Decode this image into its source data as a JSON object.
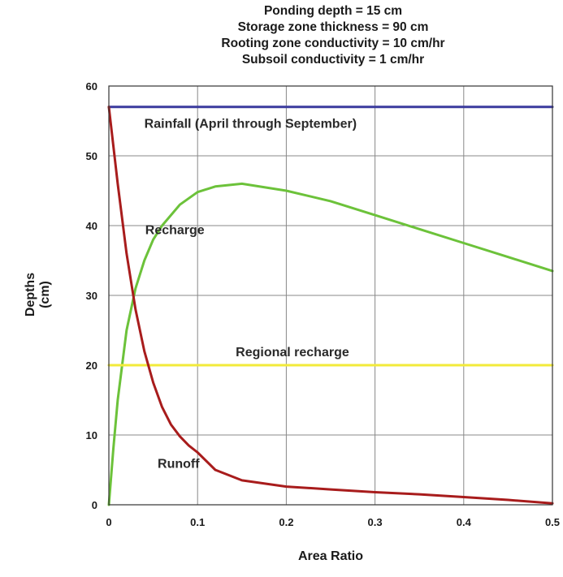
{
  "chart_data": {
    "type": "line",
    "title_lines": [
      "Ponding depth = 15 cm",
      "Storage zone thickness = 90 cm",
      "Rooting zone conductivity = 10 cm/hr",
      "Subsoil conductivity = 1 cm/hr"
    ],
    "xlabel": "Area Ratio",
    "ylabel": [
      "Depths",
      "(cm)"
    ],
    "xlim": [
      0,
      0.5
    ],
    "ylim": [
      0,
      60
    ],
    "xticks": [
      "0",
      "0.1",
      "0.2",
      "0.3",
      "0.4",
      "0.5"
    ],
    "yticks": [
      "0",
      "10",
      "20",
      "30",
      "40",
      "50",
      "60"
    ],
    "grid": true,
    "series": [
      {
        "name": "Rainfall (April through September)",
        "color": "#3b3b9e",
        "x": [
          0,
          0.5
        ],
        "y": [
          57,
          57
        ]
      },
      {
        "name": "Recharge",
        "color": "#6cc23a",
        "x": [
          0,
          0.005,
          0.01,
          0.02,
          0.03,
          0.04,
          0.05,
          0.06,
          0.08,
          0.1,
          0.12,
          0.15,
          0.2,
          0.25,
          0.3,
          0.35,
          0.4,
          0.45,
          0.5
        ],
        "y": [
          0,
          8,
          15,
          25,
          31,
          35,
          38,
          40,
          43,
          44.8,
          45.6,
          46,
          45,
          43.5,
          41.5,
          39.5,
          37.5,
          35.5,
          33.5
        ]
      },
      {
        "name": "Regional recharge",
        "color": "#f2ea3a",
        "x": [
          0,
          0.5
        ],
        "y": [
          20,
          20
        ]
      },
      {
        "name": "Runoff",
        "color": "#a81c1c",
        "x": [
          0,
          0.01,
          0.02,
          0.03,
          0.04,
          0.05,
          0.06,
          0.07,
          0.08,
          0.09,
          0.1,
          0.12,
          0.15,
          0.2,
          0.25,
          0.3,
          0.35,
          0.4,
          0.45,
          0.5
        ],
        "y": [
          57,
          46,
          36,
          28,
          22,
          17.5,
          14,
          11.5,
          9.8,
          8.5,
          7.5,
          5,
          3.5,
          2.6,
          2.2,
          1.8,
          1.5,
          1.1,
          0.7,
          0.2
        ]
      }
    ],
    "annotations": [
      {
        "text": "Rainfall (April through September)",
        "x": 0.04,
        "y": 54,
        "series": "Rainfall (April through September)"
      },
      {
        "text": "Recharge",
        "x": 0.041,
        "y": 38.8,
        "series": "Recharge"
      },
      {
        "text": "Regional recharge",
        "x": 0.143,
        "y": 21.3,
        "series": "Regional recharge"
      },
      {
        "text": "Runoff",
        "x": 0.055,
        "y": 5.3,
        "series": "Runoff"
      }
    ]
  }
}
